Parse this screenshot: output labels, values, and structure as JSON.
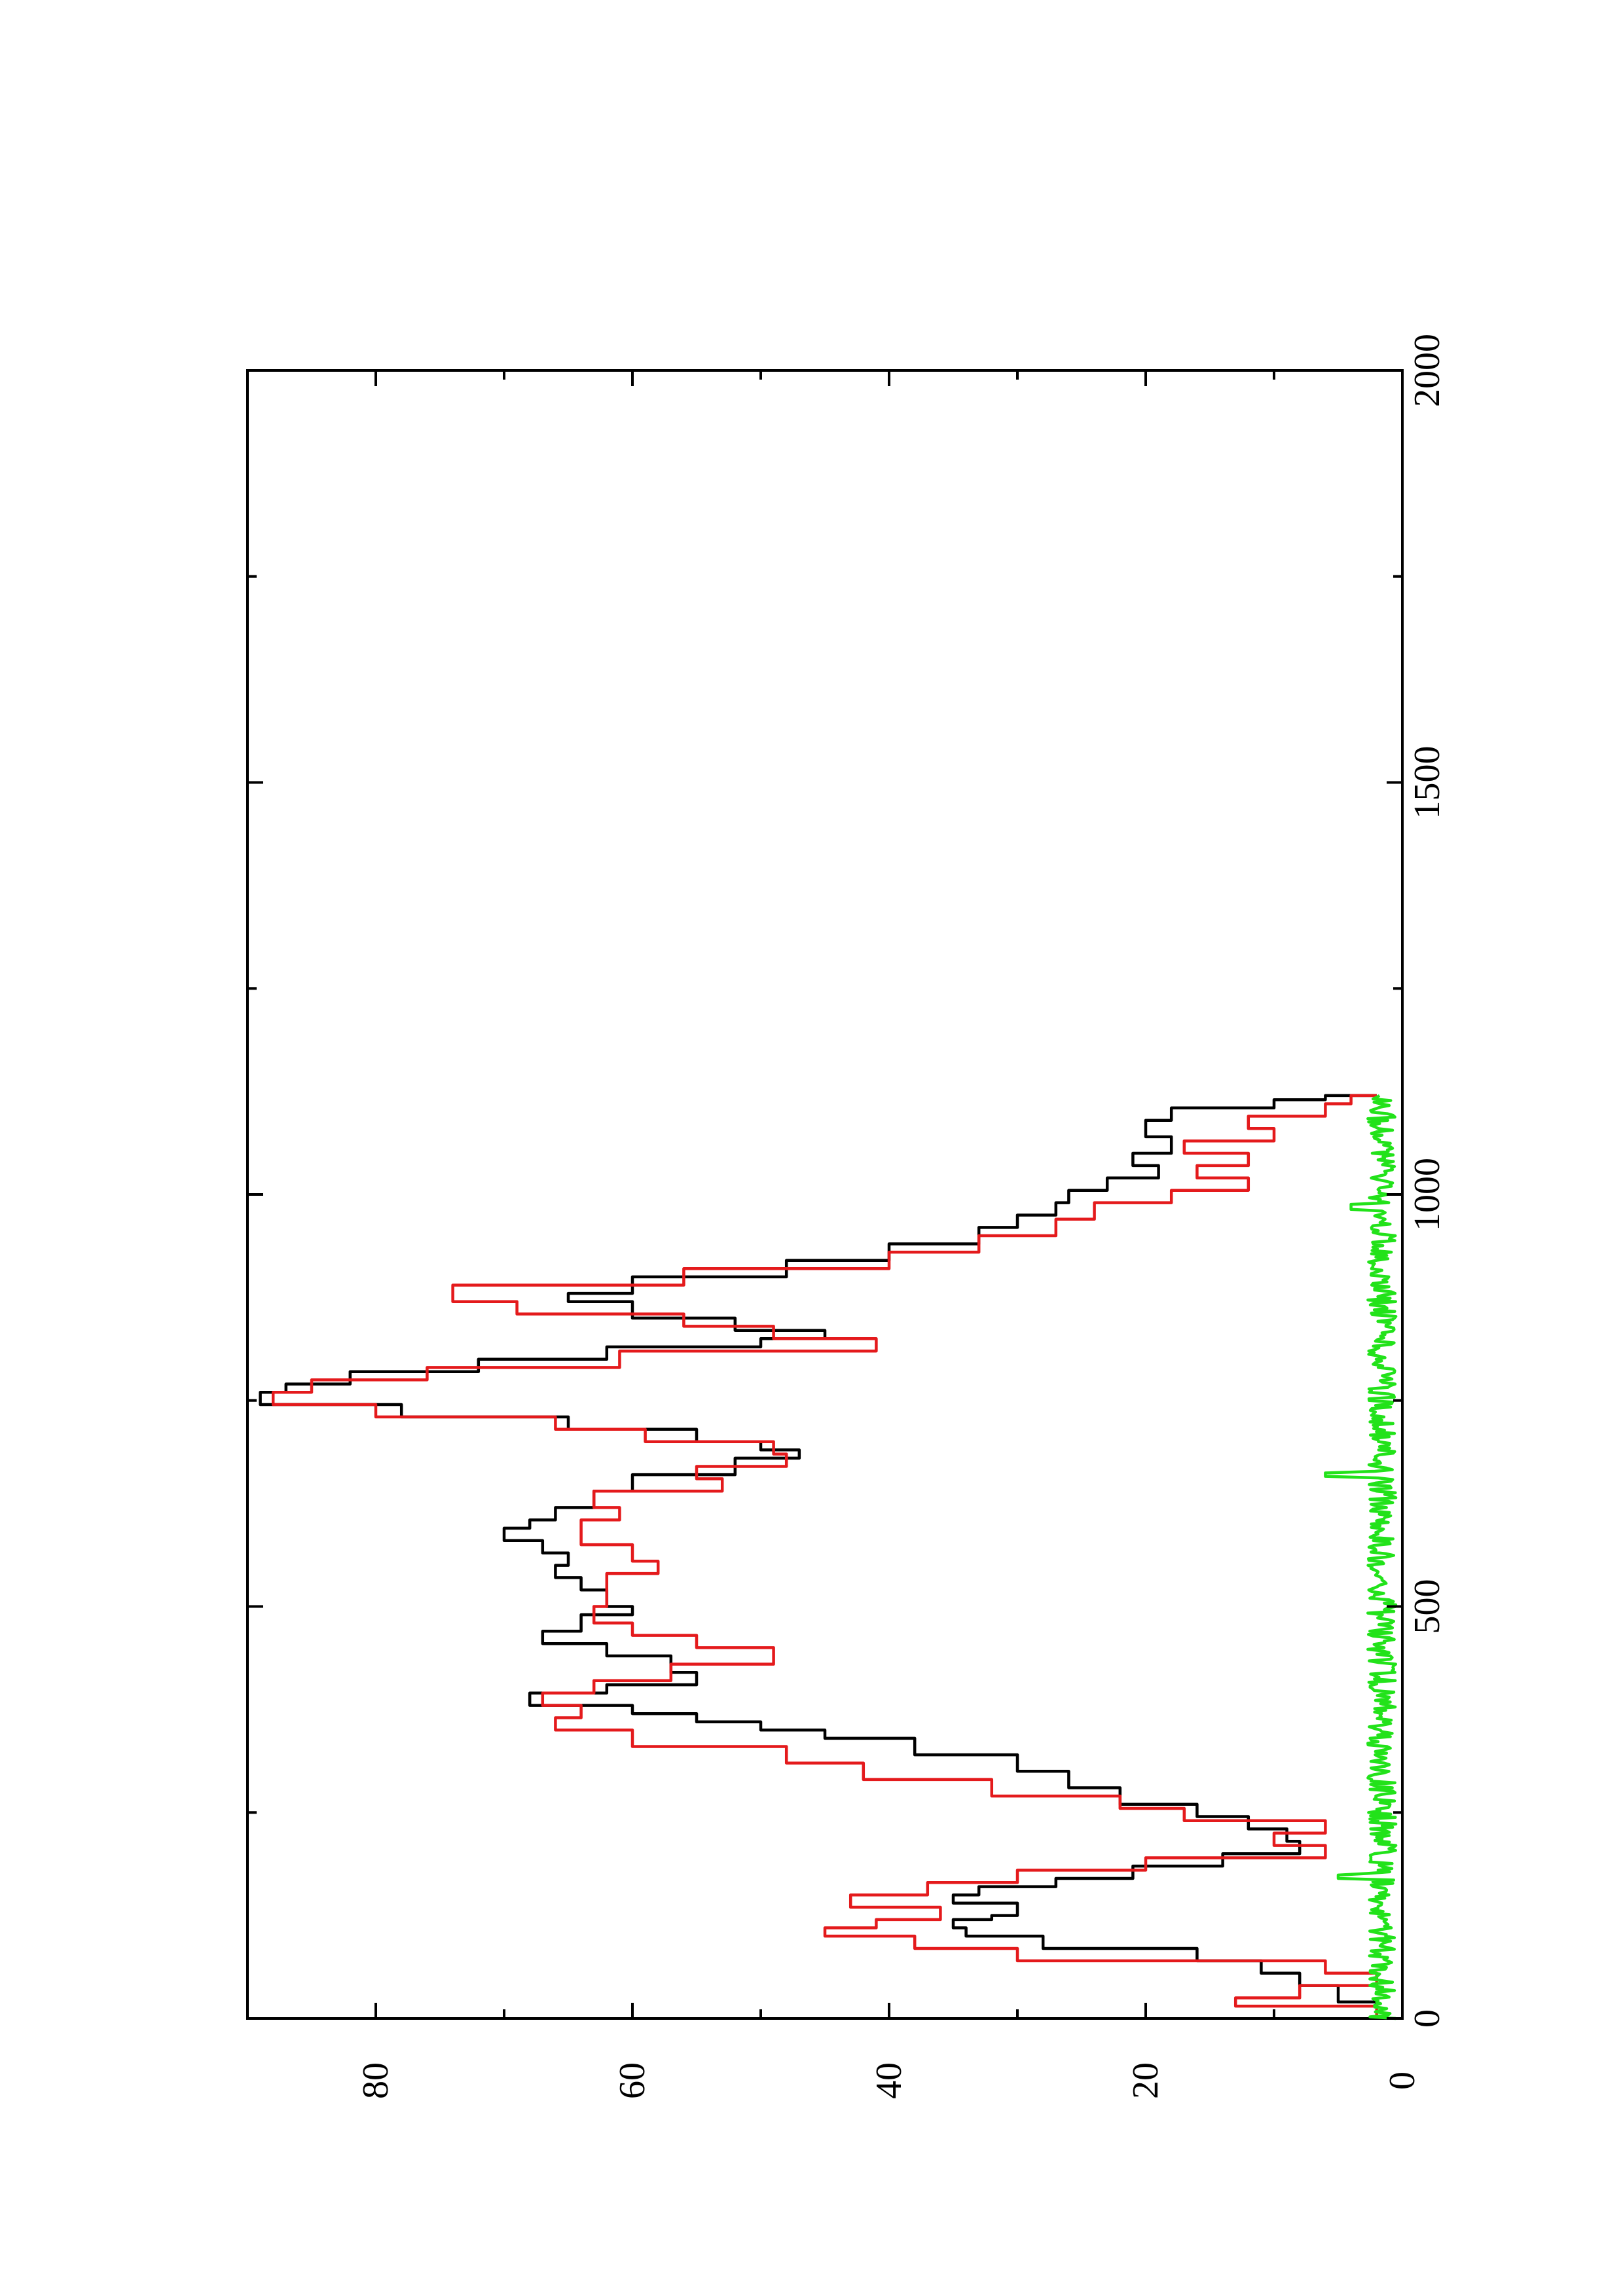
{
  "chart_data": {
    "type": "line",
    "orientation": "rotated 90 degrees counter-clockwise (page in landscape)",
    "title": "",
    "xlabel": "",
    "ylabel": "",
    "xlim": [
      0,
      2000
    ],
    "ylim": [
      0,
      90
    ],
    "x_ticks": [
      0,
      500,
      1000,
      1500,
      2000
    ],
    "x_minor_ticks": [
      250,
      750,
      1250,
      1750
    ],
    "y_ticks": [
      0,
      20,
      40,
      60,
      80
    ],
    "y_minor_ticks": [
      10,
      30,
      50,
      70
    ],
    "grid": false,
    "legend": "none",
    "series": [
      {
        "color": "#000000",
        "style": "step",
        "x": [
          0,
          20,
          40,
          55,
          70,
          85,
          100,
          110,
          120,
          125,
          140,
          150,
          160,
          170,
          185,
          200,
          215,
          230,
          245,
          260,
          280,
          300,
          320,
          340,
          350,
          360,
          370,
          380,
          395,
          405,
          420,
          440,
          455,
          470,
          490,
          500,
          520,
          535,
          550,
          565,
          580,
          595,
          605,
          620,
          640,
          660,
          680,
          690,
          700,
          715,
          730,
          745,
          760,
          770,
          785,
          800,
          815,
          825,
          835,
          850,
          870,
          880,
          900,
          920,
          940,
          960,
          975,
          990,
          1005,
          1020,
          1035,
          1050,
          1070,
          1090,
          1105,
          1115,
          1120
        ],
        "y": [
          2,
          5,
          8,
          11,
          16,
          28,
          34,
          35,
          32,
          30,
          35,
          33,
          27,
          21,
          14,
          8,
          9,
          12,
          16,
          22,
          26,
          30,
          38,
          45,
          50,
          55,
          60,
          68,
          62,
          55,
          57,
          62,
          67,
          64,
          60,
          62,
          64,
          66,
          65,
          67,
          70,
          68,
          66,
          63,
          60,
          52,
          47,
          50,
          55,
          65,
          78,
          89,
          87,
          82,
          72,
          62,
          50,
          45,
          52,
          60,
          65,
          60,
          48,
          40,
          33,
          30,
          27,
          26,
          23,
          19,
          21,
          18,
          20,
          18,
          10,
          6,
          2
        ]
      },
      {
        "color": "#e41a1c",
        "style": "step",
        "x": [
          0,
          15,
          25,
          40,
          55,
          70,
          85,
          100,
          110,
          120,
          135,
          150,
          165,
          180,
          195,
          210,
          225,
          240,
          255,
          270,
          290,
          310,
          330,
          350,
          365,
          380,
          395,
          410,
          430,
          450,
          465,
          480,
          500,
          520,
          540,
          555,
          575,
          590,
          605,
          620,
          640,
          655,
          670,
          685,
          700,
          715,
          730,
          745,
          760,
          775,
          790,
          810,
          825,
          840,
          855,
          870,
          890,
          910,
          930,
          950,
          970,
          990,
          1005,
          1020,
          1035,
          1050,
          1065,
          1080,
          1095,
          1110,
          1120
        ],
        "y": [
          2,
          13,
          8,
          2,
          6,
          30,
          38,
          45,
          41,
          36,
          43,
          37,
          30,
          20,
          6,
          10,
          6,
          17,
          22,
          32,
          42,
          48,
          60,
          66,
          64,
          67,
          63,
          57,
          49,
          55,
          60,
          63,
          62,
          62,
          58,
          60,
          64,
          64,
          61,
          63,
          53,
          55,
          48,
          49,
          59,
          66,
          80,
          88,
          85,
          76,
          61,
          41,
          49,
          56,
          69,
          74,
          56,
          40,
          33,
          27,
          24,
          18,
          12,
          16,
          12,
          17,
          10,
          12,
          6,
          4,
          2
        ]
      },
      {
        "color": "#22e21a",
        "style": "noise",
        "x_range": [
          0,
          1120
        ],
        "baseline": 0.5,
        "amplitude": 2.2,
        "spikes": [
          {
            "x": 172,
            "y": 5
          },
          {
            "x": 660,
            "y": 6
          },
          {
            "x": 985,
            "y": 4
          }
        ]
      }
    ]
  }
}
